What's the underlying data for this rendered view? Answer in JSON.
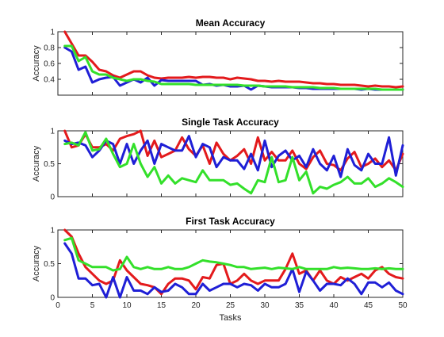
{
  "figure": {
    "background": "#ffffff"
  },
  "chart_data": [
    {
      "type": "line",
      "title": "Mean Accuracy",
      "xlabel": "",
      "ylabel": "Accuracy",
      "xlim": [
        0,
        50
      ],
      "ylim": [
        0.2,
        1.0
      ],
      "xticks": [],
      "yticks": [
        0.4,
        0.6,
        0.8,
        1
      ],
      "ytick_labels": [
        "0.4",
        "0.6",
        "0.8",
        "1"
      ],
      "grid": false,
      "legend": "none",
      "x": [
        1,
        2,
        3,
        4,
        5,
        6,
        7,
        8,
        9,
        10,
        11,
        12,
        13,
        14,
        15,
        16,
        17,
        18,
        19,
        20,
        21,
        22,
        23,
        24,
        25,
        26,
        27,
        28,
        29,
        30,
        31,
        32,
        33,
        34,
        35,
        36,
        37,
        38,
        39,
        40,
        41,
        42,
        43,
        44,
        45,
        46,
        47,
        48,
        49,
        50
      ],
      "series": [
        {
          "color": "#e31a1c",
          "values": [
            1.0,
            0.85,
            0.7,
            0.7,
            0.62,
            0.52,
            0.5,
            0.45,
            0.42,
            0.46,
            0.5,
            0.5,
            0.45,
            0.42,
            0.41,
            0.42,
            0.42,
            0.42,
            0.43,
            0.42,
            0.43,
            0.43,
            0.42,
            0.42,
            0.4,
            0.42,
            0.41,
            0.4,
            0.38,
            0.38,
            0.37,
            0.38,
            0.37,
            0.37,
            0.37,
            0.36,
            0.35,
            0.35,
            0.34,
            0.34,
            0.33,
            0.33,
            0.33,
            0.32,
            0.31,
            0.32,
            0.31,
            0.31,
            0.3,
            0.31
          ]
        },
        {
          "color": "#1f1fd6",
          "values": [
            0.8,
            0.75,
            0.52,
            0.56,
            0.36,
            0.4,
            0.42,
            0.43,
            0.32,
            0.36,
            0.4,
            0.36,
            0.42,
            0.32,
            0.39,
            0.38,
            0.38,
            0.38,
            0.38,
            0.38,
            0.33,
            0.34,
            0.32,
            0.33,
            0.31,
            0.31,
            0.32,
            0.27,
            0.32,
            0.31,
            0.3,
            0.3,
            0.3,
            0.3,
            0.29,
            0.29,
            0.28,
            0.28,
            0.28,
            0.28,
            0.28,
            0.28,
            0.28,
            0.27,
            0.28,
            0.27,
            0.27,
            0.27,
            0.27,
            0.27
          ]
        },
        {
          "color": "#33e02a",
          "values": [
            0.82,
            0.82,
            0.63,
            0.68,
            0.5,
            0.46,
            0.46,
            0.42,
            0.4,
            0.38,
            0.4,
            0.4,
            0.38,
            0.37,
            0.34,
            0.34,
            0.34,
            0.34,
            0.34,
            0.33,
            0.33,
            0.33,
            0.33,
            0.33,
            0.33,
            0.33,
            0.32,
            0.32,
            0.32,
            0.31,
            0.31,
            0.31,
            0.31,
            0.3,
            0.3,
            0.3,
            0.3,
            0.29,
            0.29,
            0.29,
            0.28,
            0.28,
            0.28,
            0.28,
            0.28,
            0.28,
            0.27,
            0.27,
            0.27,
            0.27
          ]
        }
      ]
    },
    {
      "type": "line",
      "title": "Single Task Accuracy",
      "xlabel": "",
      "ylabel": "Accuracy",
      "xlim": [
        0,
        50
      ],
      "ylim": [
        0,
        1
      ],
      "xticks": [],
      "yticks": [
        0,
        0.5,
        1
      ],
      "ytick_labels": [
        "0",
        "0.5",
        "1"
      ],
      "grid": false,
      "legend": "none",
      "x": [
        1,
        2,
        3,
        4,
        5,
        6,
        7,
        8,
        9,
        10,
        11,
        12,
        13,
        14,
        15,
        16,
        17,
        18,
        19,
        20,
        21,
        22,
        23,
        24,
        25,
        26,
        27,
        28,
        29,
        30,
        31,
        32,
        33,
        34,
        35,
        36,
        37,
        38,
        39,
        40,
        41,
        42,
        43,
        44,
        45,
        46,
        47,
        48,
        49,
        50
      ],
      "series": [
        {
          "color": "#e31a1c",
          "values": [
            1.0,
            0.75,
            0.78,
            0.95,
            0.75,
            0.75,
            0.8,
            0.7,
            0.88,
            0.92,
            0.95,
            1.0,
            0.62,
            0.85,
            0.6,
            0.65,
            0.7,
            0.9,
            0.72,
            0.62,
            0.78,
            0.5,
            0.82,
            0.65,
            0.55,
            0.62,
            0.72,
            0.5,
            0.9,
            0.55,
            0.68,
            0.55,
            0.55,
            0.7,
            0.5,
            0.42,
            0.6,
            0.7,
            0.5,
            0.48,
            0.4,
            0.58,
            0.68,
            0.45,
            0.5,
            0.58,
            0.45,
            0.55,
            0.4,
            0.65
          ]
        },
        {
          "color": "#1f1fd6",
          "values": [
            0.85,
            0.8,
            0.82,
            0.78,
            0.6,
            0.7,
            0.85,
            0.8,
            0.5,
            0.8,
            0.5,
            0.7,
            0.85,
            0.5,
            0.8,
            0.75,
            0.7,
            0.7,
            0.92,
            0.6,
            0.8,
            0.75,
            0.45,
            0.6,
            0.55,
            0.55,
            0.42,
            0.65,
            0.4,
            0.85,
            0.45,
            0.62,
            0.7,
            0.55,
            0.62,
            0.45,
            0.72,
            0.5,
            0.4,
            0.62,
            0.3,
            0.72,
            0.48,
            0.4,
            0.65,
            0.5,
            0.5,
            0.9,
            0.32,
            0.78
          ]
        },
        {
          "color": "#33e02a",
          "values": [
            0.8,
            0.82,
            0.78,
            0.98,
            0.7,
            0.72,
            0.88,
            0.65,
            0.45,
            0.5,
            0.8,
            0.5,
            0.3,
            0.45,
            0.2,
            0.32,
            0.2,
            0.28,
            0.25,
            0.22,
            0.4,
            0.25,
            0.25,
            0.25,
            0.18,
            0.2,
            0.12,
            0.05,
            0.25,
            0.22,
            0.6,
            0.22,
            0.25,
            0.6,
            0.25,
            0.38,
            0.05,
            0.15,
            0.12,
            0.18,
            0.22,
            0.3,
            0.2,
            0.2,
            0.28,
            0.15,
            0.2,
            0.28,
            0.22,
            0.15
          ]
        }
      ]
    },
    {
      "type": "line",
      "title": "First Task Accuracy",
      "xlabel": "Tasks",
      "ylabel": "Accuracy",
      "xlim": [
        0,
        50
      ],
      "ylim": [
        0,
        1
      ],
      "xticks": [
        0,
        5,
        10,
        15,
        20,
        25,
        30,
        35,
        40,
        45,
        50
      ],
      "xtick_labels": [
        "0",
        "5",
        "10",
        "15",
        "20",
        "25",
        "30",
        "35",
        "40",
        "45",
        "50"
      ],
      "yticks": [
        0,
        0.5,
        1
      ],
      "ytick_labels": [
        "0",
        "0.5",
        "1"
      ],
      "grid": false,
      "legend": "none",
      "x": [
        1,
        2,
        3,
        4,
        5,
        6,
        7,
        8,
        9,
        10,
        11,
        12,
        13,
        14,
        15,
        16,
        17,
        18,
        19,
        20,
        21,
        22,
        23,
        24,
        25,
        26,
        27,
        28,
        29,
        30,
        31,
        32,
        33,
        34,
        35,
        36,
        37,
        38,
        39,
        40,
        41,
        42,
        43,
        44,
        45,
        46,
        47,
        48,
        49,
        50
      ],
      "series": [
        {
          "color": "#e31a1c",
          "values": [
            1.0,
            0.9,
            0.65,
            0.45,
            0.35,
            0.25,
            0.2,
            0.25,
            0.55,
            0.4,
            0.3,
            0.2,
            0.18,
            0.15,
            0.05,
            0.2,
            0.28,
            0.28,
            0.25,
            0.12,
            0.3,
            0.28,
            0.48,
            0.5,
            0.2,
            0.25,
            0.35,
            0.25,
            0.2,
            0.25,
            0.25,
            0.25,
            0.42,
            0.65,
            0.35,
            0.4,
            0.25,
            0.4,
            0.25,
            0.2,
            0.3,
            0.25,
            0.3,
            0.35,
            0.28,
            0.4,
            0.45,
            0.35,
            0.3,
            0.28
          ]
        },
        {
          "color": "#1f1fd6",
          "values": [
            0.8,
            0.65,
            0.28,
            0.28,
            0.18,
            0.2,
            0.0,
            0.3,
            0.0,
            0.3,
            0.1,
            0.1,
            0.05,
            0.15,
            0.08,
            0.1,
            0.2,
            0.15,
            0.05,
            0.05,
            0.2,
            0.1,
            0.15,
            0.2,
            0.2,
            0.15,
            0.2,
            0.18,
            0.1,
            0.2,
            0.15,
            0.15,
            0.2,
            0.42,
            0.08,
            0.38,
            0.25,
            0.1,
            0.2,
            0.2,
            0.18,
            0.28,
            0.2,
            0.05,
            0.22,
            0.22,
            0.15,
            0.22,
            0.1,
            0.05
          ]
        },
        {
          "color": "#33e02a",
          "values": [
            0.85,
            0.88,
            0.55,
            0.5,
            0.45,
            0.45,
            0.45,
            0.4,
            0.42,
            0.6,
            0.45,
            0.42,
            0.45,
            0.42,
            0.42,
            0.45,
            0.42,
            0.42,
            0.45,
            0.5,
            0.55,
            0.53,
            0.52,
            0.5,
            0.48,
            0.45,
            0.45,
            0.42,
            0.43,
            0.44,
            0.42,
            0.44,
            0.43,
            0.42,
            0.45,
            0.42,
            0.42,
            0.42,
            0.42,
            0.45,
            0.43,
            0.44,
            0.43,
            0.42,
            0.42,
            0.43,
            0.42,
            0.43,
            0.42,
            0.42
          ]
        }
      ]
    }
  ]
}
